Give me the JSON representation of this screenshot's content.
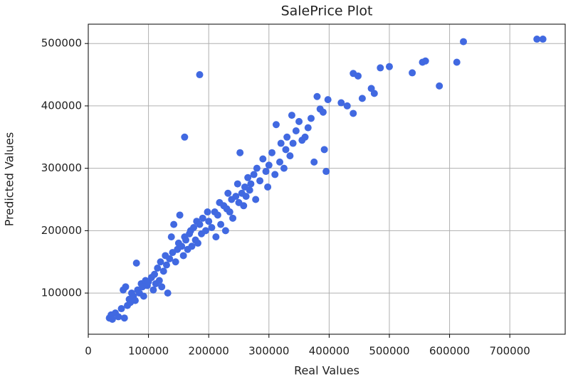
{
  "chart_data": {
    "type": "scatter",
    "title": "SalePrice Plot",
    "x_label": "Real Values",
    "y_label": "Predicted Values",
    "color": "#4169e1",
    "grid": true,
    "xlim": [
      0,
      792000
    ],
    "ylim": [
      34000,
      531000
    ],
    "xticks": [
      0,
      100000,
      200000,
      300000,
      400000,
      500000,
      600000,
      700000
    ],
    "yticks": [
      100000,
      200000,
      300000,
      400000,
      500000
    ],
    "x": [
      35000,
      38000,
      40000,
      45000,
      50000,
      55000,
      58000,
      60000,
      62000,
      65000,
      68000,
      70000,
      72000,
      75000,
      78000,
      80000,
      82000,
      85000,
      88000,
      90000,
      92000,
      95000,
      98000,
      100000,
      105000,
      108000,
      110000,
      112000,
      115000,
      118000,
      120000,
      122000,
      125000,
      128000,
      130000,
      132000,
      135000,
      138000,
      140000,
      142000,
      145000,
      148000,
      150000,
      152000,
      155000,
      158000,
      160000,
      162000,
      165000,
      168000,
      170000,
      172000,
      175000,
      178000,
      180000,
      182000,
      185000,
      188000,
      190000,
      195000,
      198000,
      200000,
      205000,
      210000,
      212000,
      215000,
      218000,
      220000,
      225000,
      228000,
      230000,
      232000,
      235000,
      238000,
      240000,
      245000,
      248000,
      250000,
      252000,
      255000,
      258000,
      260000,
      262000,
      265000,
      268000,
      270000,
      275000,
      278000,
      280000,
      285000,
      290000,
      295000,
      298000,
      300000,
      305000,
      310000,
      312000,
      318000,
      320000,
      325000,
      328000,
      330000,
      335000,
      338000,
      340000,
      345000,
      350000,
      355000,
      360000,
      365000,
      370000,
      375000,
      380000,
      385000,
      390000,
      392000,
      398000,
      420000,
      430000,
      745000,
      755000,
      623000,
      555000,
      560000,
      612000,
      583000,
      538000,
      500000,
      485000,
      185000,
      160000,
      395000,
      440000,
      448000,
      470000,
      475000,
      455000,
      440000
    ],
    "values": [
      60000,
      65000,
      58000,
      68000,
      62000,
      75000,
      105000,
      60000,
      110000,
      80000,
      90000,
      85000,
      100000,
      95000,
      88000,
      148000,
      105000,
      100000,
      115000,
      110000,
      95000,
      120000,
      112000,
      118000,
      125000,
      105000,
      130000,
      115000,
      140000,
      120000,
      150000,
      110000,
      135000,
      160000,
      145000,
      100000,
      155000,
      190000,
      165000,
      210000,
      150000,
      170000,
      180000,
      225000,
      175000,
      160000,
      190000,
      185000,
      170000,
      195000,
      200000,
      175000,
      205000,
      185000,
      215000,
      180000,
      210000,
      195000,
      220000,
      200000,
      230000,
      215000,
      205000,
      230000,
      190000,
      225000,
      245000,
      210000,
      240000,
      200000,
      235000,
      260000,
      230000,
      250000,
      220000,
      255000,
      275000,
      245000,
      325000,
      260000,
      240000,
      270000,
      255000,
      285000,
      265000,
      275000,
      290000,
      250000,
      300000,
      280000,
      315000,
      295000,
      270000,
      305000,
      325000,
      290000,
      370000,
      310000,
      340000,
      300000,
      330000,
      350000,
      320000,
      385000,
      340000,
      360000,
      375000,
      345000,
      350000,
      365000,
      380000,
      310000,
      415000,
      395000,
      390000,
      330000,
      410000,
      405000,
      400000,
      507000,
      507000,
      503000,
      470000,
      472000,
      470000,
      432000,
      453000,
      463000,
      461000,
      450000,
      350000,
      295000,
      452000,
      448000,
      428000,
      420000,
      412000,
      388000
    ]
  }
}
